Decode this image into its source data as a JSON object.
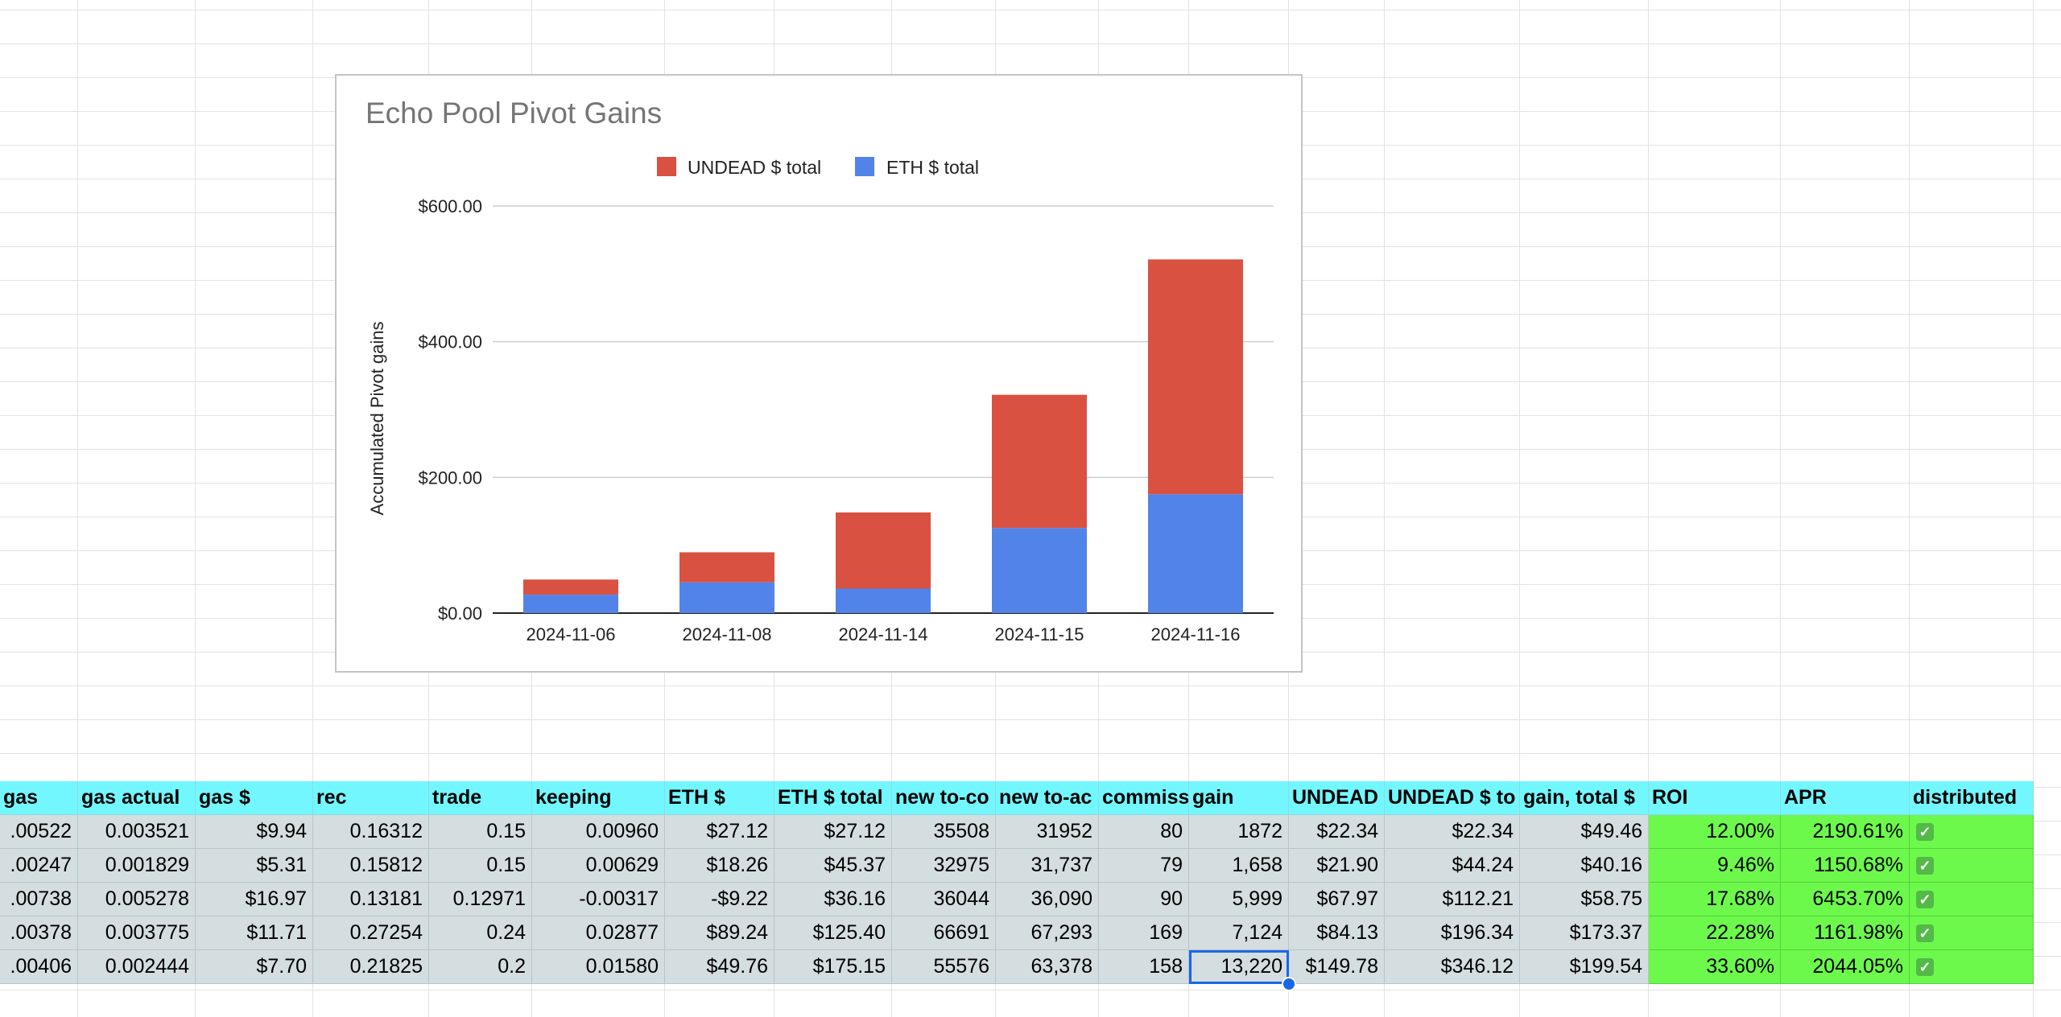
{
  "chart": {
    "title": "Echo Pool Pivot Gains",
    "ylabel": "Accumulated Pivot gains",
    "legend": [
      "UNDEAD $ total",
      "ETH $ total"
    ]
  },
  "chart_data": {
    "type": "bar",
    "stacked": true,
    "title": "Echo Pool Pivot Gains",
    "xlabel": "",
    "ylabel": "Accumulated Pivot gains",
    "categories": [
      "2024-11-06",
      "2024-11-08",
      "2024-11-14",
      "2024-11-15",
      "2024-11-16"
    ],
    "series": [
      {
        "name": "ETH $ total",
        "color": "#5283e8",
        "values": [
          27.12,
          45.37,
          36.16,
          125.4,
          175.15
        ]
      },
      {
        "name": "UNDEAD $ total",
        "color": "#d95141",
        "values": [
          22.34,
          44.24,
          112.21,
          196.34,
          346.12
        ]
      }
    ],
    "ylim": [
      0,
      600
    ],
    "yticks": [
      "$0.00",
      "$200.00",
      "$400.00",
      "$600.00"
    ],
    "ytick_values": [
      0,
      200,
      400,
      600
    ],
    "grid": true,
    "legend_position": "top"
  },
  "table": {
    "headers": [
      "gas",
      "gas actual",
      "gas $",
      "rec",
      "trade",
      "keeping",
      "ETH $",
      "ETH $ total",
      "new to-co",
      "new to-ac",
      "commiss",
      "gain",
      "UNDEAD",
      "UNDEAD $ to",
      "gain, total $",
      "ROI",
      "APR",
      "distributed"
    ],
    "rows": [
      [
        ".00522",
        "0.003521",
        "$9.94",
        "0.16312",
        "0.15",
        "0.00960",
        "$27.12",
        "$27.12",
        "35508",
        "31952",
        "80",
        "1872",
        "$22.34",
        "$22.34",
        "$49.46",
        "12.00%",
        "2190.61%",
        "✓"
      ],
      [
        ".00247",
        "0.001829",
        "$5.31",
        "0.15812",
        "0.15",
        "0.00629",
        "$18.26",
        "$45.37",
        "32975",
        "31,737",
        "79",
        "1,658",
        "$21.90",
        "$44.24",
        "$40.16",
        "9.46%",
        "1150.68%",
        "✓"
      ],
      [
        ".00738",
        "0.005278",
        "$16.97",
        "0.13181",
        "0.12971",
        "-0.00317",
        "-$9.22",
        "$36.16",
        "36044",
        "36,090",
        "90",
        "5,999",
        "$67.97",
        "$112.21",
        "$58.75",
        "17.68%",
        "6453.70%",
        "✓"
      ],
      [
        ".00378",
        "0.003775",
        "$11.71",
        "0.27254",
        "0.24",
        "0.02877",
        "$89.24",
        "$125.40",
        "66691",
        "67,293",
        "169",
        "7,124",
        "$84.13",
        "$196.34",
        "$173.37",
        "22.28%",
        "1161.98%",
        "✓"
      ],
      [
        ".00406",
        "0.002444",
        "$7.70",
        "0.21825",
        "0.2",
        "0.01580",
        "$49.76",
        "$175.15",
        "55576",
        "63,378",
        "158",
        "13,220",
        "$149.78",
        "$346.12",
        "$199.54",
        "33.60%",
        "2044.05%",
        "✓"
      ]
    ]
  },
  "colors": {
    "header_bg": "#72f7ff",
    "body_bg": "#d4dde0",
    "green_bg": "#6cf94c",
    "selection": "#1a66e8"
  }
}
